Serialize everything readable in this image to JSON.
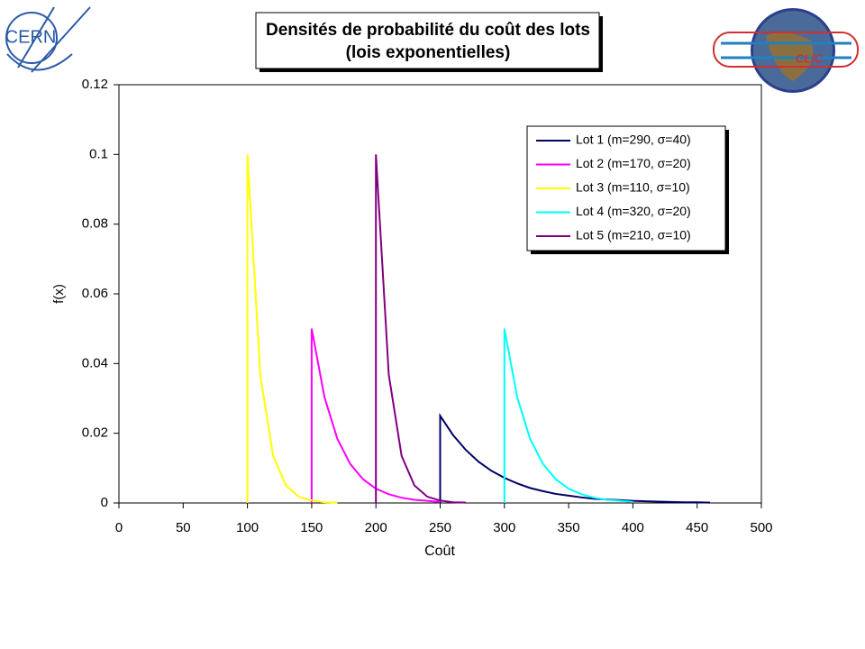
{
  "logos": {
    "left": "CERN",
    "right": "CLIC"
  },
  "chart_data": {
    "type": "line",
    "title_lines": [
      "Densités de probabilité du coût des lots",
      "(lois exponentielles)"
    ],
    "x_label": "Coût",
    "y_label": "f(x)",
    "xlim": [
      0,
      500
    ],
    "xticks": [
      0,
      50,
      100,
      150,
      200,
      250,
      300,
      350,
      400,
      450,
      500
    ],
    "ylim": [
      0,
      0.12
    ],
    "yticks": [
      0,
      0.02,
      0.04,
      0.06,
      0.08,
      0.1,
      0.12
    ],
    "legend": "top-right",
    "series": [
      {
        "name": "Lot 1 (m=290, σ=40)",
        "color": "#000066",
        "x": [
          250,
          250,
          260,
          270,
          280,
          290,
          300,
          310,
          320,
          330,
          340,
          350,
          360,
          370,
          380,
          390,
          400,
          410,
          420,
          430,
          440,
          450,
          460
        ],
        "values": [
          0,
          0.025,
          0.0195,
          0.0152,
          0.0118,
          0.0092,
          0.0072,
          0.0056,
          0.0043,
          0.0034,
          0.0026,
          0.0021,
          0.0016,
          0.0012,
          0.001,
          0.0008,
          0.0006,
          0.0005,
          0.0004,
          0.0003,
          0.0002,
          0.0002,
          0.0001
        ]
      },
      {
        "name": "Lot 2 (m=170, σ=20)",
        "color": "#ff00ff",
        "x": [
          150,
          150,
          160,
          170,
          180,
          190,
          200,
          210,
          220,
          230,
          240,
          250
        ],
        "values": [
          0,
          0.05,
          0.0303,
          0.0184,
          0.0112,
          0.0068,
          0.0041,
          0.0025,
          0.0015,
          0.0009,
          0.0006,
          0.0003
        ]
      },
      {
        "name": "Lot 3 (m=110, σ=10)",
        "color": "#ffff00",
        "x": [
          100,
          100,
          110,
          120,
          130,
          140,
          150,
          160,
          170
        ],
        "values": [
          0,
          0.1,
          0.0368,
          0.0135,
          0.005,
          0.0018,
          0.0007,
          0.0002,
          0.0001
        ]
      },
      {
        "name": "Lot 4 (m=320, σ=20)",
        "color": "#00ffff",
        "x": [
          300,
          300,
          310,
          320,
          330,
          340,
          350,
          360,
          370,
          380,
          390,
          400
        ],
        "values": [
          0,
          0.05,
          0.0303,
          0.0184,
          0.0112,
          0.0068,
          0.0041,
          0.0025,
          0.0015,
          0.0009,
          0.0006,
          0.0003
        ]
      },
      {
        "name": "Lot 5 (m=210, σ=10)",
        "color": "#800080",
        "x": [
          200,
          200,
          210,
          220,
          230,
          240,
          250,
          260,
          270
        ],
        "values": [
          0,
          0.1,
          0.0368,
          0.0135,
          0.005,
          0.0018,
          0.0007,
          0.0002,
          0.0001
        ]
      }
    ]
  }
}
